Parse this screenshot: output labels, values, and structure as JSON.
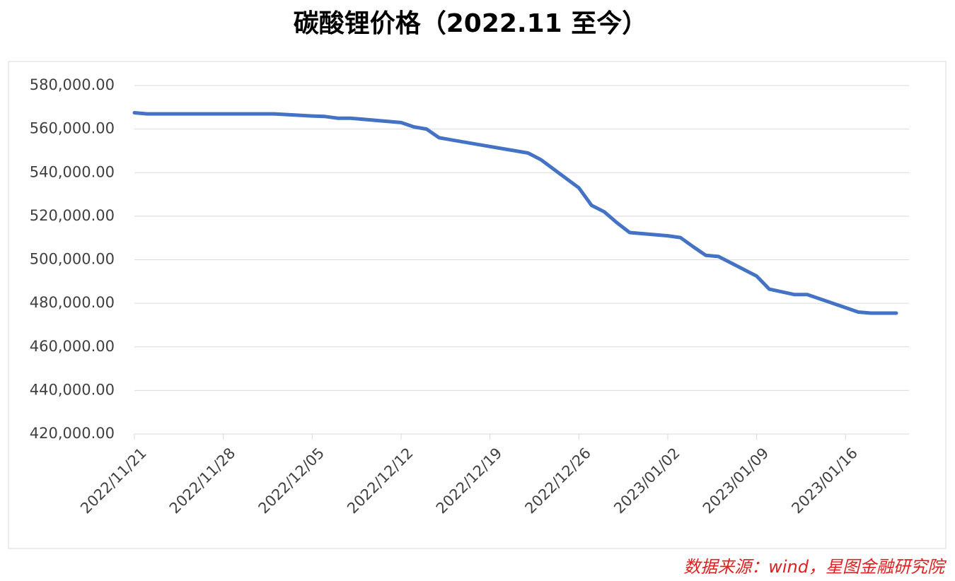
{
  "chart_data": {
    "type": "line",
    "title": "碳酸锂价格（2022.11 至今）",
    "source": "数据来源：wind，星图金融研究院",
    "x": [
      "2022/11/21",
      "2022/11/22",
      "2022/12/02",
      "2022/12/05",
      "2022/12/06",
      "2022/12/07",
      "2022/12/08",
      "2022/12/12",
      "2022/12/13",
      "2022/12/14",
      "2022/12/15",
      "2022/12/19",
      "2022/12/20",
      "2022/12/21",
      "2022/12/22",
      "2022/12/23",
      "2022/12/26",
      "2022/12/27",
      "2022/12/28",
      "2022/12/29",
      "2022/12/30",
      "2023/01/02",
      "2023/01/03",
      "2023/01/04",
      "2023/01/05",
      "2023/01/06",
      "2023/01/09",
      "2023/01/10",
      "2023/01/12",
      "2023/01/13",
      "2023/01/16",
      "2023/01/17",
      "2023/01/18",
      "2023/01/20"
    ],
    "series": [
      {
        "name": "碳酸锂价格",
        "color": "#4472c4",
        "values": [
          567500,
          567000,
          567000,
          566000,
          565800,
          565000,
          565000,
          563000,
          561000,
          560000,
          556000,
          552000,
          551000,
          550000,
          549000,
          546000,
          533000,
          525000,
          522000,
          517000,
          512500,
          511000,
          510200,
          506000,
          502000,
          501500,
          492500,
          486500,
          484000,
          484000,
          478000,
          476000,
          475500,
          475500
        ]
      }
    ],
    "xlim": [
      "2022/11/21",
      "2023/01/21"
    ],
    "xticks": [
      "2022/11/21",
      "2022/11/28",
      "2022/12/05",
      "2022/12/12",
      "2022/12/19",
      "2022/12/26",
      "2023/01/02",
      "2023/01/09",
      "2023/01/16"
    ],
    "ylim": [
      420000,
      580000
    ],
    "yticks": [
      {
        "value": 420000,
        "label": "420,000.00"
      },
      {
        "value": 440000,
        "label": "440,000.00"
      },
      {
        "value": 460000,
        "label": "460,000.00"
      },
      {
        "value": 480000,
        "label": "480,000.00"
      },
      {
        "value": 500000,
        "label": "500,000.00"
      },
      {
        "value": 520000,
        "label": "520,000.00"
      },
      {
        "value": 540000,
        "label": "540,000.00"
      },
      {
        "value": 560000,
        "label": "560,000.00"
      },
      {
        "value": 580000,
        "label": "580,000.00"
      }
    ],
    "grid": true
  }
}
